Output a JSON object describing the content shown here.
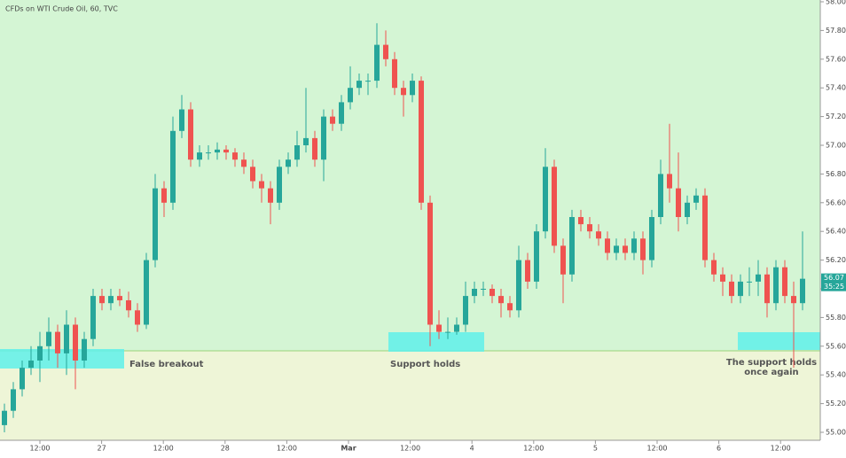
{
  "chart_data": {
    "type": "candlestick",
    "title": "CFDs on WTI Crude Oil, 60, TVC",
    "up_color": "#26a69a",
    "down_color": "#ef5350",
    "ylim": [
      55.0,
      58.0
    ],
    "yticks": [
      {
        "value": 55.0,
        "label": "55.00"
      },
      {
        "value": 55.2,
        "label": "55.20"
      },
      {
        "value": 55.4,
        "label": "55.40"
      },
      {
        "value": 55.6,
        "label": "55.60"
      },
      {
        "value": 55.8,
        "label": "55.80"
      },
      {
        "value": 56.0,
        "label": "56.00"
      },
      {
        "value": 56.2,
        "label": "56.20"
      },
      {
        "value": 56.4,
        "label": "56.40"
      },
      {
        "value": 56.6,
        "label": "56.60"
      },
      {
        "value": 56.8,
        "label": "56.80"
      },
      {
        "value": 57.0,
        "label": "57.00"
      },
      {
        "value": 57.2,
        "label": "57.20"
      },
      {
        "value": 57.4,
        "label": "57.40"
      },
      {
        "value": 57.6,
        "label": "57.60"
      },
      {
        "value": 57.8,
        "label": "57.80"
      },
      {
        "value": 58.0,
        "label": "58.00"
      }
    ],
    "x_labels": [
      "12:00",
      "27",
      "12:00",
      "28",
      "12:00",
      "Mar",
      "12:00",
      "4",
      "12:00",
      "5",
      "12:00",
      "6",
      "12:00"
    ],
    "last_price": 56.07,
    "countdown": "35:25",
    "annotations": [
      "False breakout",
      "Support holds",
      "The support holds",
      "once again"
    ],
    "candles": [
      [
        55.05,
        55.2,
        55.0,
        55.15
      ],
      [
        55.15,
        55.35,
        55.1,
        55.3
      ],
      [
        55.3,
        55.5,
        55.25,
        55.45
      ],
      [
        55.45,
        55.6,
        55.4,
        55.5
      ],
      [
        55.5,
        55.7,
        55.35,
        55.6
      ],
      [
        55.6,
        55.8,
        55.5,
        55.7
      ],
      [
        55.7,
        55.75,
        55.45,
        55.55
      ],
      [
        55.55,
        55.85,
        55.4,
        55.75
      ],
      [
        55.75,
        55.8,
        55.3,
        55.5
      ],
      [
        55.5,
        55.7,
        55.45,
        55.65
      ],
      [
        55.65,
        56.0,
        55.6,
        55.95
      ],
      [
        55.95,
        56.0,
        55.85,
        55.9
      ],
      [
        55.9,
        56.0,
        55.85,
        55.95
      ],
      [
        55.95,
        56.0,
        55.88,
        55.92
      ],
      [
        55.92,
        55.98,
        55.8,
        55.85
      ],
      [
        55.85,
        55.9,
        55.7,
        55.75
      ],
      [
        55.75,
        56.25,
        55.72,
        56.2
      ],
      [
        56.2,
        56.8,
        56.15,
        56.7
      ],
      [
        56.7,
        56.75,
        56.5,
        56.6
      ],
      [
        56.6,
        57.2,
        56.55,
        57.1
      ],
      [
        57.1,
        57.35,
        57.05,
        57.25
      ],
      [
        57.25,
        57.3,
        56.85,
        56.9
      ],
      [
        56.9,
        57.0,
        56.85,
        56.95
      ],
      [
        56.95,
        57.0,
        56.9,
        56.95
      ],
      [
        56.95,
        57.02,
        56.9,
        56.97
      ],
      [
        56.97,
        57.0,
        56.9,
        56.95
      ],
      [
        56.95,
        56.98,
        56.85,
        56.9
      ],
      [
        56.9,
        56.95,
        56.8,
        56.85
      ],
      [
        56.85,
        56.9,
        56.7,
        56.75
      ],
      [
        56.75,
        56.8,
        56.6,
        56.7
      ],
      [
        56.7,
        56.75,
        56.45,
        56.6
      ],
      [
        56.6,
        56.9,
        56.55,
        56.85
      ],
      [
        56.85,
        56.95,
        56.8,
        56.9
      ],
      [
        56.9,
        57.1,
        56.85,
        57.0
      ],
      [
        57.0,
        57.4,
        56.95,
        57.05
      ],
      [
        57.05,
        57.1,
        56.85,
        56.9
      ],
      [
        56.9,
        57.25,
        56.75,
        57.2
      ],
      [
        57.2,
        57.25,
        57.1,
        57.15
      ],
      [
        57.15,
        57.35,
        57.1,
        57.3
      ],
      [
        57.3,
        57.55,
        57.25,
        57.4
      ],
      [
        57.4,
        57.5,
        57.35,
        57.45
      ],
      [
        57.45,
        57.5,
        57.35,
        57.45
      ],
      [
        57.45,
        57.85,
        57.4,
        57.7
      ],
      [
        57.7,
        57.8,
        57.55,
        57.6
      ],
      [
        57.6,
        57.65,
        57.35,
        57.4
      ],
      [
        57.4,
        57.45,
        57.2,
        57.35
      ],
      [
        57.35,
        57.5,
        57.3,
        57.45
      ],
      [
        57.45,
        57.48,
        56.55,
        56.6
      ],
      [
        56.6,
        56.65,
        55.6,
        55.75
      ],
      [
        55.75,
        55.85,
        55.65,
        55.7
      ],
      [
        55.7,
        55.8,
        55.65,
        55.7
      ],
      [
        55.7,
        55.8,
        55.68,
        55.75
      ],
      [
        55.75,
        56.05,
        55.7,
        55.95
      ],
      [
        55.95,
        56.05,
        55.9,
        56.0
      ],
      [
        56.0,
        56.05,
        55.95,
        56.0
      ],
      [
        56.0,
        56.03,
        55.9,
        55.95
      ],
      [
        55.95,
        56.0,
        55.8,
        55.9
      ],
      [
        55.9,
        55.95,
        55.8,
        55.85
      ],
      [
        55.85,
        56.3,
        55.8,
        56.2
      ],
      [
        56.2,
        56.25,
        56.0,
        56.05
      ],
      [
        56.05,
        56.45,
        56.0,
        56.4
      ],
      [
        56.4,
        56.98,
        56.35,
        56.85
      ],
      [
        56.85,
        56.9,
        56.25,
        56.3
      ],
      [
        56.3,
        56.35,
        55.9,
        56.1
      ],
      [
        56.1,
        56.55,
        56.05,
        56.5
      ],
      [
        56.5,
        56.55,
        56.4,
        56.45
      ],
      [
        56.45,
        56.5,
        56.35,
        56.4
      ],
      [
        56.4,
        56.45,
        56.3,
        56.35
      ],
      [
        56.35,
        56.4,
        56.2,
        56.25
      ],
      [
        56.25,
        56.35,
        56.2,
        56.3
      ],
      [
        56.3,
        56.35,
        56.2,
        56.25
      ],
      [
        56.25,
        56.4,
        56.2,
        56.35
      ],
      [
        56.35,
        56.4,
        56.1,
        56.2
      ],
      [
        56.2,
        56.55,
        56.15,
        56.5
      ],
      [
        56.5,
        56.9,
        56.45,
        56.8
      ],
      [
        56.8,
        57.15,
        56.6,
        56.7
      ],
      [
        56.7,
        56.95,
        56.4,
        56.5
      ],
      [
        56.5,
        56.65,
        56.45,
        56.6
      ],
      [
        56.6,
        56.7,
        56.55,
        56.65
      ],
      [
        56.65,
        56.7,
        56.15,
        56.2
      ],
      [
        56.2,
        56.25,
        56.05,
        56.1
      ],
      [
        56.1,
        56.15,
        55.95,
        56.05
      ],
      [
        56.05,
        56.1,
        55.9,
        55.95
      ],
      [
        55.95,
        56.1,
        55.9,
        56.05
      ],
      [
        56.05,
        56.15,
        55.95,
        56.05
      ],
      [
        56.05,
        56.2,
        55.95,
        56.1
      ],
      [
        56.1,
        56.15,
        55.8,
        55.9
      ],
      [
        55.9,
        56.2,
        55.85,
        56.15
      ],
      [
        56.15,
        56.2,
        55.9,
        55.95
      ],
      [
        55.95,
        56.05,
        55.45,
        55.9
      ],
      [
        55.9,
        56.4,
        55.85,
        56.07
      ]
    ]
  }
}
